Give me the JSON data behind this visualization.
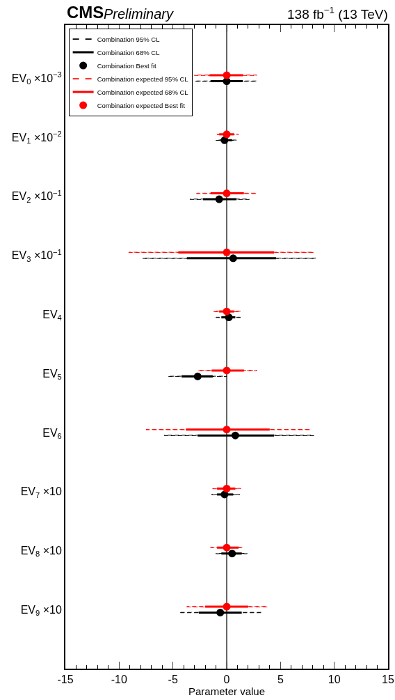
{
  "chart_data": {
    "type": "scatter",
    "orientation": "horizontal",
    "title": "CMS",
    "subtitle": "Preliminary",
    "annotations": [
      "138 fb$^{−1}$ (13 TeV)"
    ],
    "xlabel": "Parameter value",
    "categories": [
      "EV$_{0}$ ×10$^{−3}$",
      "EV$_{1}$ ×10$^{−2}$",
      "EV$_{2}$ ×10$^{−1}$",
      "EV$_{3}$ ×10$^{−1}$",
      "EV$_{4}$",
      "EV$_{5}$",
      "EV$_{6}$",
      "EV$_{7}$ ×10",
      "EV$_{8}$ ×10",
      "EV$_{9}$ ×10"
    ],
    "xlim": [
      -15,
      15
    ],
    "xticks": [
      -15,
      -10,
      -5,
      0,
      5,
      10,
      15
    ],
    "grid": false,
    "legend": "top left",
    "ref_lines": [
      {
        "axis": "x",
        "value": 0,
        "color": "#000000"
      }
    ],
    "series": [
      {
        "name": "Combination 95% CL",
        "type": "bar",
        "color": "#000000",
        "line_style": "dashed",
        "base": [
          -2.9,
          -1.0,
          -3.4,
          -7.8,
          -1.0,
          -5.4,
          -5.8,
          -1.4,
          -1.0,
          -4.3
        ],
        "values": [
          5.7,
          1.9,
          5.5,
          16.1,
          2.4,
          5.4,
          13.9,
          2.6,
          2.9,
          7.6
        ]
      },
      {
        "name": "Combination 68% CL",
        "type": "bar",
        "color": "#000000",
        "line_style": "solid",
        "base": [
          -1.5,
          -0.6,
          -2.2,
          -3.7,
          -0.5,
          -4.2,
          -2.7,
          -0.9,
          -0.5,
          -2.6
        ],
        "values": [
          3.0,
          1.1,
          3.1,
          8.3,
          1.3,
          2.9,
          7.1,
          1.5,
          1.9,
          4.0
        ]
      },
      {
        "name": "Combination Best fit",
        "color": "#000000",
        "marker": "circle",
        "values": [
          0,
          -0.2,
          -0.7,
          0.6,
          0.2,
          -2.7,
          0.8,
          -0.2,
          0.5,
          -0.6
        ]
      },
      {
        "name": "Combination expected 95% CL",
        "type": "bar",
        "color": "#ff0000",
        "line_style": "dashed",
        "base": [
          -3.0,
          -0.9,
          -2.8,
          -9.1,
          -1.2,
          -2.6,
          -7.5,
          -1.3,
          -1.5,
          -3.7
        ],
        "values": [
          5.8,
          2.0,
          5.6,
          17.2,
          2.5,
          5.4,
          15.3,
          2.6,
          3.0,
          7.5
        ]
      },
      {
        "name": "Combination expected 68% CL",
        "type": "bar",
        "color": "#ff0000",
        "line_style": "solid",
        "base": [
          -1.6,
          -0.7,
          -1.5,
          -4.5,
          -0.7,
          -1.4,
          -3.8,
          -0.9,
          -0.9,
          -2.0
        ],
        "values": [
          3.1,
          1.4,
          3.1,
          8.9,
          1.4,
          3.0,
          7.8,
          1.7,
          2.0,
          4.0
        ]
      },
      {
        "name": "Combination expected Best fit",
        "color": "#ff0000",
        "marker": "circle",
        "values": [
          0,
          0,
          0,
          0,
          0,
          0,
          0,
          0,
          0,
          0
        ]
      }
    ]
  }
}
